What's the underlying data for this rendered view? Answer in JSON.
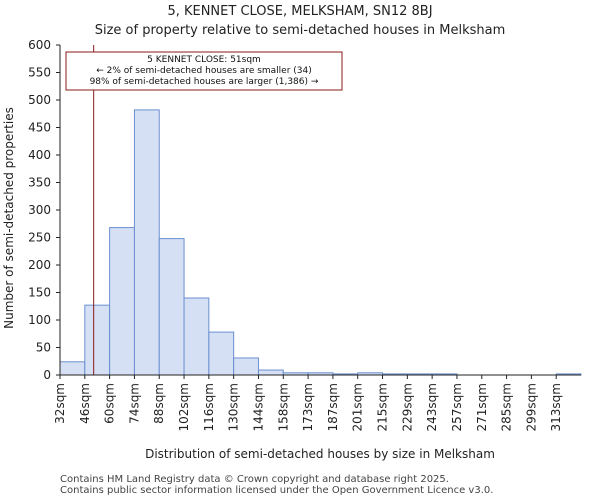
{
  "chart_data": {
    "type": "bar",
    "title": "5, KENNET CLOSE, MELKSHAM, SN12 8BJ",
    "subtitle": "Size of property relative to semi-detached houses in Melksham",
    "xlabel": "Distribution of semi-detached houses by size in Melksham",
    "ylabel": "Number of semi-detached properties",
    "categories": [
      "32sqm",
      "46sqm",
      "60sqm",
      "74sqm",
      "88sqm",
      "102sqm",
      "116sqm",
      "130sqm",
      "144sqm",
      "158sqm",
      "173sqm",
      "187sqm",
      "201sqm",
      "215sqm",
      "229sqm",
      "243sqm",
      "257sqm",
      "271sqm",
      "285sqm",
      "299sqm",
      "313sqm"
    ],
    "values": [
      24,
      127,
      268,
      482,
      248,
      140,
      78,
      31,
      9,
      4,
      4,
      2,
      4,
      2,
      2,
      2,
      0,
      0,
      0,
      0,
      2
    ],
    "ylim": [
      0,
      600
    ],
    "yticks": [
      0,
      50,
      100,
      150,
      200,
      250,
      300,
      350,
      400,
      450,
      500,
      550,
      600
    ],
    "grid": false,
    "bar_color": "#d6e0f5",
    "bar_edge_color": "#6a8fcf",
    "marker": {
      "value_sqm": 51,
      "color": "#8b1a1a",
      "lines": [
        "5 KENNET CLOSE: 51sqm",
        "← 2% of semi-detached houses are smaller (34)",
        "98% of semi-detached houses are larger (1,386) →"
      ]
    }
  },
  "footer": {
    "line1": "Contains HM Land Registry data © Crown copyright and database right 2025.",
    "line2": "Contains public sector information licensed under the Open Government Licence v3.0."
  }
}
